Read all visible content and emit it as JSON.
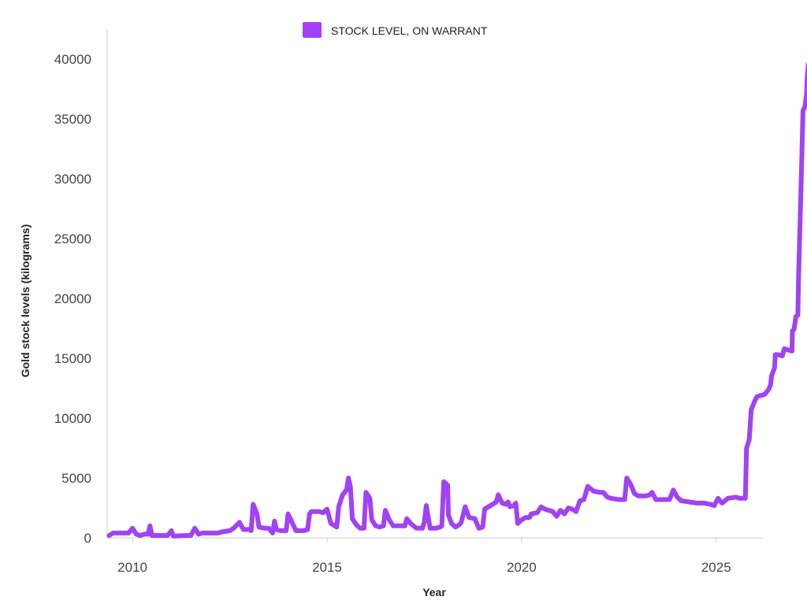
{
  "chart_data": {
    "type": "line",
    "xlabel": "Year",
    "ylabel": "Gold stock levels (kilograms)",
    "xlim": [
      2009.35,
      2026.2
    ],
    "ylim": [
      0,
      40000
    ],
    "x_ticks": [
      2010,
      2015,
      2020,
      2025
    ],
    "y_ticks": [
      0,
      5000,
      10000,
      15000,
      20000,
      25000,
      30000,
      35000,
      40000
    ],
    "grid": false,
    "legend_position": "top-center",
    "series": [
      {
        "name": "STOCK LEVEL, ON WARRANT",
        "color": "#a142f4",
        "points": [
          [
            2009.4,
            200
          ],
          [
            2009.5,
            400
          ],
          [
            2009.9,
            400
          ],
          [
            2010.0,
            800
          ],
          [
            2010.1,
            300
          ],
          [
            2010.2,
            200
          ],
          [
            2010.3,
            300
          ],
          [
            2010.4,
            300
          ],
          [
            2010.45,
            1000
          ],
          [
            2010.5,
            200
          ],
          [
            2010.9,
            200
          ],
          [
            2011.0,
            600
          ],
          [
            2011.05,
            150
          ],
          [
            2011.4,
            200
          ],
          [
            2011.5,
            200
          ],
          [
            2011.6,
            800
          ],
          [
            2011.7,
            300
          ],
          [
            2011.8,
            400
          ],
          [
            2012.0,
            400
          ],
          [
            2012.2,
            400
          ],
          [
            2012.3,
            500
          ],
          [
            2012.5,
            600
          ],
          [
            2012.6,
            800
          ],
          [
            2012.75,
            1300
          ],
          [
            2012.85,
            700
          ],
          [
            2013.0,
            700
          ],
          [
            2013.05,
            600
          ],
          [
            2013.1,
            2800
          ],
          [
            2013.2,
            2000
          ],
          [
            2013.25,
            900
          ],
          [
            2013.4,
            800
          ],
          [
            2013.5,
            800
          ],
          [
            2013.6,
            400
          ],
          [
            2013.65,
            1400
          ],
          [
            2013.7,
            700
          ],
          [
            2013.8,
            600
          ],
          [
            2013.95,
            600
          ],
          [
            2014.0,
            2000
          ],
          [
            2014.1,
            1300
          ],
          [
            2014.2,
            600
          ],
          [
            2014.4,
            600
          ],
          [
            2014.5,
            700
          ],
          [
            2014.55,
            2000
          ],
          [
            2014.6,
            2200
          ],
          [
            2014.8,
            2200
          ],
          [
            2014.9,
            2100
          ],
          [
            2015.0,
            2400
          ],
          [
            2015.1,
            1200
          ],
          [
            2015.2,
            1000
          ],
          [
            2015.25,
            900
          ],
          [
            2015.3,
            2600
          ],
          [
            2015.4,
            3600
          ],
          [
            2015.5,
            4000
          ],
          [
            2015.55,
            5000
          ],
          [
            2015.6,
            4300
          ],
          [
            2015.65,
            1600
          ],
          [
            2015.75,
            1100
          ],
          [
            2015.85,
            800
          ],
          [
            2015.95,
            800
          ],
          [
            2016.0,
            3800
          ],
          [
            2016.1,
            3300
          ],
          [
            2016.15,
            1500
          ],
          [
            2016.25,
            1000
          ],
          [
            2016.35,
            900
          ],
          [
            2016.45,
            1000
          ],
          [
            2016.5,
            2300
          ],
          [
            2016.6,
            1500
          ],
          [
            2016.7,
            1000
          ],
          [
            2016.9,
            1000
          ],
          [
            2017.0,
            1000
          ],
          [
            2017.05,
            1600
          ],
          [
            2017.15,
            1200
          ],
          [
            2017.3,
            800
          ],
          [
            2017.45,
            800
          ],
          [
            2017.5,
            1300
          ],
          [
            2017.55,
            2700
          ],
          [
            2017.65,
            800
          ],
          [
            2017.8,
            800
          ],
          [
            2017.9,
            900
          ],
          [
            2017.95,
            1000
          ],
          [
            2018.0,
            4700
          ],
          [
            2018.1,
            4400
          ],
          [
            2018.12,
            1900
          ],
          [
            2018.2,
            1200
          ],
          [
            2018.3,
            900
          ],
          [
            2018.4,
            1100
          ],
          [
            2018.45,
            1300
          ],
          [
            2018.55,
            2600
          ],
          [
            2018.65,
            1700
          ],
          [
            2018.8,
            1600
          ],
          [
            2018.9,
            800
          ],
          [
            2019.0,
            900
          ],
          [
            2019.05,
            2400
          ],
          [
            2019.2,
            2700
          ],
          [
            2019.35,
            3000
          ],
          [
            2019.4,
            3600
          ],
          [
            2019.5,
            2900
          ],
          [
            2019.6,
            2800
          ],
          [
            2019.65,
            3000
          ],
          [
            2019.7,
            2600
          ],
          [
            2019.8,
            2700
          ],
          [
            2019.85,
            2900
          ],
          [
            2019.9,
            1200
          ],
          [
            2020.0,
            1500
          ],
          [
            2020.1,
            1700
          ],
          [
            2020.2,
            1700
          ],
          [
            2020.25,
            2000
          ],
          [
            2020.4,
            2100
          ],
          [
            2020.5,
            2600
          ],
          [
            2020.6,
            2400
          ],
          [
            2020.8,
            2200
          ],
          [
            2020.9,
            1800
          ],
          [
            2021.0,
            2300
          ],
          [
            2021.1,
            2000
          ],
          [
            2021.2,
            2500
          ],
          [
            2021.3,
            2400
          ],
          [
            2021.4,
            2200
          ],
          [
            2021.5,
            3100
          ],
          [
            2021.6,
            3200
          ],
          [
            2021.7,
            4300
          ],
          [
            2021.85,
            3900
          ],
          [
            2022.0,
            3800
          ],
          [
            2022.1,
            3800
          ],
          [
            2022.2,
            3400
          ],
          [
            2022.3,
            3300
          ],
          [
            2022.5,
            3200
          ],
          [
            2022.65,
            3200
          ],
          [
            2022.7,
            5000
          ],
          [
            2022.8,
            4500
          ],
          [
            2022.9,
            3700
          ],
          [
            2023.0,
            3500
          ],
          [
            2023.2,
            3500
          ],
          [
            2023.3,
            3600
          ],
          [
            2023.35,
            3800
          ],
          [
            2023.45,
            3200
          ],
          [
            2023.6,
            3200
          ],
          [
            2023.7,
            3200
          ],
          [
            2023.8,
            3200
          ],
          [
            2023.9,
            4000
          ],
          [
            2024.0,
            3400
          ],
          [
            2024.1,
            3100
          ],
          [
            2024.3,
            3000
          ],
          [
            2024.5,
            2900
          ],
          [
            2024.7,
            2900
          ],
          [
            2024.85,
            2800
          ],
          [
            2024.95,
            2700
          ],
          [
            2025.05,
            3300
          ],
          [
            2025.15,
            2900
          ],
          [
            2025.3,
            3300
          ],
          [
            2025.5,
            3400
          ],
          [
            2025.6,
            3300
          ],
          [
            2025.75,
            3300
          ],
          [
            2025.78,
            7500
          ],
          [
            2025.85,
            8200
          ],
          [
            2025.9,
            10700
          ],
          [
            2026.0,
            11500
          ],
          [
            2026.05,
            11800
          ],
          [
            2026.25,
            12000
          ],
          [
            2026.35,
            12400
          ],
          [
            2026.4,
            12800
          ],
          [
            2026.42,
            13500
          ],
          [
            2026.5,
            14200
          ],
          [
            2026.52,
            15300
          ],
          [
            2026.6,
            15300
          ],
          [
            2026.7,
            15200
          ],
          [
            2026.75,
            15800
          ],
          [
            2026.85,
            15700
          ],
          [
            2026.95,
            15600
          ],
          [
            2026.96,
            17300
          ],
          [
            2027.0,
            17400
          ],
          [
            2027.05,
            18500
          ],
          [
            2027.1,
            18600
          ],
          [
            2027.12,
            22000
          ],
          [
            2027.17,
            28000
          ],
          [
            2027.21,
            33000
          ],
          [
            2027.23,
            35700
          ],
          [
            2027.28,
            36000
          ],
          [
            2027.32,
            37000
          ],
          [
            2027.34,
            38500
          ],
          [
            2027.37,
            39600
          ]
        ]
      }
    ]
  }
}
